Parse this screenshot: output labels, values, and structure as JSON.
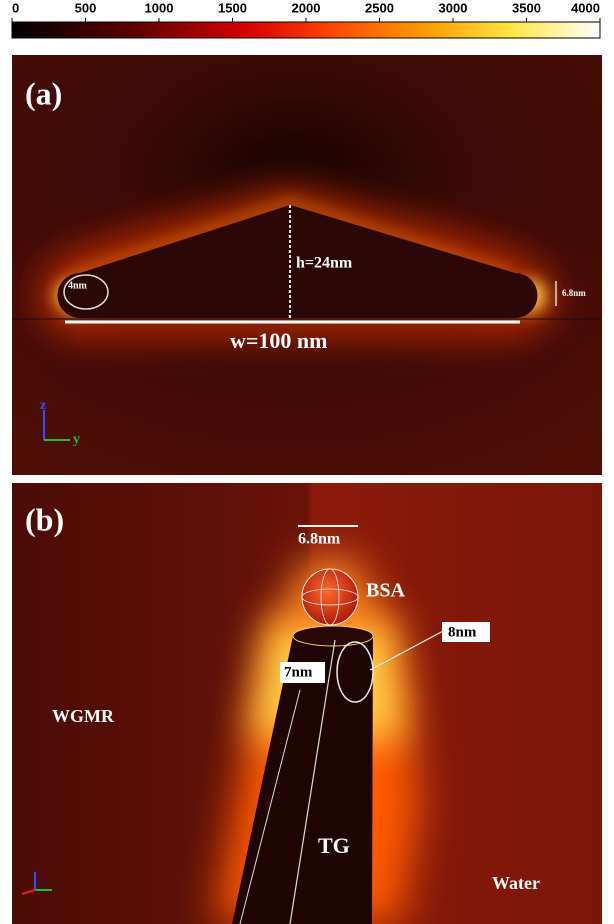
{
  "colorbar": {
    "lim": [
      0,
      4000
    ],
    "ticks": [
      0,
      500,
      1000,
      1500,
      2000,
      2500,
      3000,
      3500,
      4000
    ]
  },
  "panels": [
    {
      "label": "(a)",
      "loop_diameter": "4nm",
      "height": "h=24nm",
      "gap": "6.8nm",
      "width": "w=100 nm",
      "axis_z": "z",
      "axis_y": "y"
    },
    {
      "label": "(b)",
      "protein_size": "6.8nm",
      "protein": "BSA",
      "gap": "8nm",
      "cap": "7nm",
      "resonator": "WGMR",
      "guide": "TG",
      "medium": "Water"
    }
  ]
}
